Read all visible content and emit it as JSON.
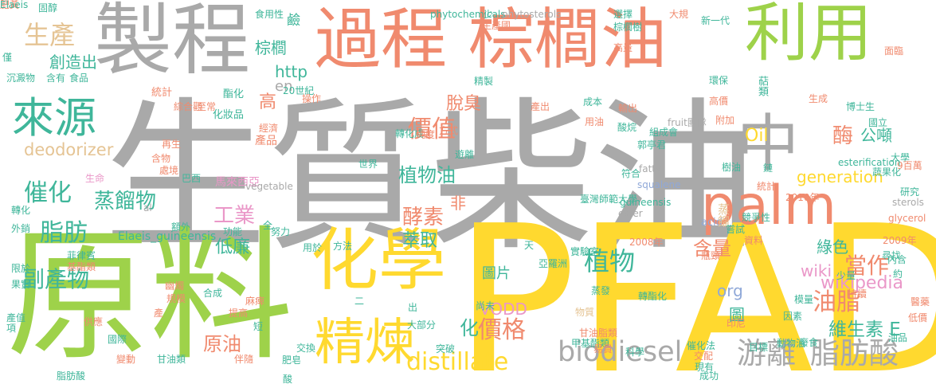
{
  "colors": {
    "gray": "#a9a9a9",
    "orange": "#f4a460",
    "salmon": "#f08a6e",
    "green": "#9ed24a",
    "teal": "#3fb69a",
    "yellow": "#ffd92f",
    "pink": "#ea97c8",
    "blue": "#8fa8d8",
    "tan": "#e5c494"
  },
  "words": [
    {
      "text": "生質柴油",
      "color": "gray"
    },
    {
      "text": "PFAD",
      "color": "yellow"
    },
    {
      "text": "原料",
      "color": "green"
    },
    {
      "text": "製程",
      "color": "gray"
    },
    {
      "text": "過程",
      "color": "salmon"
    },
    {
      "text": "棕櫚油",
      "color": "salmon"
    },
    {
      "text": "利用",
      "color": "green"
    },
    {
      "text": "palm",
      "color": "salmon"
    },
    {
      "text": "化學",
      "color": "yellow"
    },
    {
      "text": "精煉",
      "color": "yellow"
    },
    {
      "text": "中",
      "color": "gray"
    },
    {
      "text": "來源",
      "color": "teal"
    },
    {
      "text": "生產",
      "color": "tan"
    },
    {
      "text": "biodiesel",
      "color": "gray"
    },
    {
      "text": "游離",
      "color": "gray"
    },
    {
      "text": "脂肪酸",
      "color": "gray"
    },
    {
      "text": "distillate",
      "color": "yellow"
    },
    {
      "text": "價值",
      "color": "salmon"
    },
    {
      "text": "價格",
      "color": "salmon"
    },
    {
      "text": "催化",
      "color": "teal"
    },
    {
      "text": "脂肪",
      "color": "teal"
    },
    {
      "text": "副產物",
      "color": "teal"
    },
    {
      "text": "蒸餾物",
      "color": "teal"
    },
    {
      "text": "工業",
      "color": "pink"
    },
    {
      "text": "酵素",
      "color": "salmon"
    },
    {
      "text": "植物油",
      "color": "teal"
    },
    {
      "text": "植物",
      "color": "teal"
    },
    {
      "text": "當作",
      "color": "salmon"
    },
    {
      "text": "油脂",
      "color": "salmon"
    },
    {
      "text": "維生素 E",
      "color": "teal"
    },
    {
      "text": "wikipedia",
      "color": "pink"
    },
    {
      "text": "wiki",
      "color": "pink"
    },
    {
      "text": "含量",
      "color": "salmon"
    },
    {
      "text": "generation",
      "color": "yellow"
    },
    {
      "text": "Oil",
      "color": "yellow"
    },
    {
      "text": "公噸",
      "color": "teal"
    },
    {
      "text": "酶",
      "color": "salmon"
    },
    {
      "text": "脫臭",
      "color": "salmon"
    },
    {
      "text": "deodorizer",
      "color": "tan"
    },
    {
      "text": "創造出",
      "color": "teal"
    },
    {
      "text": "高",
      "color": "salmon"
    },
    {
      "text": "http",
      "color": "teal"
    },
    {
      "text": "en",
      "color": "gray"
    },
    {
      "text": "棕櫚",
      "color": "teal"
    },
    {
      "text": "萃取",
      "color": "teal"
    },
    {
      "text": "低廉",
      "color": "teal"
    },
    {
      "text": "綠色",
      "color": "teal"
    },
    {
      "text": "非",
      "color": "salmon"
    },
    {
      "text": "圖片",
      "color": "teal"
    },
    {
      "text": "圖",
      "color": "teal"
    },
    {
      "text": "org",
      "color": "blue"
    },
    {
      "text": "VODD",
      "color": "pink"
    },
    {
      "text": "原油",
      "color": "salmon"
    },
    {
      "text": "化",
      "color": "teal"
    },
    {
      "text": "Elaeis_guineensis",
      "color": "teal"
    },
    {
      "text": "產品",
      "color": "salmon"
    },
    {
      "text": "馬來西亞",
      "color": "pink"
    },
    {
      "text": "fatty",
      "color": "gray"
    },
    {
      "text": "acid",
      "color": "blue"
    },
    {
      "text": "蒸餾",
      "color": "tan"
    },
    {
      "text": "化妝品",
      "color": "teal"
    },
    {
      "text": "酯化",
      "color": "teal"
    },
    {
      "text": "統計",
      "color": "salmon"
    },
    {
      "text": "鹼",
      "color": "teal"
    },
    {
      "text": "食用性",
      "color": "teal"
    },
    {
      "text": "固醇",
      "color": "teal"
    },
    {
      "text": "phytochemicals",
      "color": "teal"
    },
    {
      "text": "phytosterols",
      "color": "gray"
    },
    {
      "text": "少",
      "color": "teal"
    },
    {
      "text": "選擇",
      "color": "teal"
    },
    {
      "text": "大規",
      "color": "salmon"
    },
    {
      "text": "新一代",
      "color": "teal"
    },
    {
      "text": "棕櫚樹",
      "color": "teal"
    },
    {
      "text": "面臨",
      "color": "salmon"
    },
    {
      "text": "僅",
      "color": "teal"
    },
    {
      "text": "沉澱物",
      "color": "teal"
    },
    {
      "text": "含有",
      "color": "teal"
    },
    {
      "text": "食品",
      "color": "teal"
    },
    {
      "text": "生產國",
      "color": "salmon"
    },
    {
      "text": "高量",
      "color": "salmon"
    },
    {
      "text": "精製",
      "color": "teal"
    },
    {
      "text": "環保",
      "color": "teal"
    },
    {
      "text": "萜類",
      "color": "teal"
    },
    {
      "text": "生成",
      "color": "salmon"
    },
    {
      "text": "博士生",
      "color": "teal"
    },
    {
      "text": "國立",
      "color": "teal"
    },
    {
      "text": "大學",
      "color": "teal"
    },
    {
      "text": "9百萬",
      "color": "salmon"
    },
    {
      "text": "蔬果化",
      "color": "teal"
    },
    {
      "text": "研究",
      "color": "teal"
    },
    {
      "text": "sterols",
      "color": "gray"
    },
    {
      "text": "glycerol",
      "color": "salmon"
    },
    {
      "text": "2009年",
      "color": "salmon"
    },
    {
      "text": "2010年",
      "color": "salmon"
    },
    {
      "text": "2008年",
      "color": "salmon"
    },
    {
      "text": "20世紀",
      "color": "teal"
    },
    {
      "text": "方式",
      "color": "salmon"
    },
    {
      "text": "產出",
      "color": "salmon"
    },
    {
      "text": "成本",
      "color": "teal"
    },
    {
      "text": "輸出",
      "color": "salmon"
    },
    {
      "text": "用油",
      "color": "salmon"
    },
    {
      "text": "酸烷",
      "color": "teal"
    },
    {
      "text": "組成會",
      "color": "teal"
    },
    {
      "text": "fruit團隊",
      "color": "gray"
    },
    {
      "text": "高價",
      "color": "salmon"
    },
    {
      "text": "附加",
      "color": "salmon"
    },
    {
      "text": "樹油",
      "color": "teal"
    },
    {
      "text": "鏈",
      "color": "teal"
    },
    {
      "text": "統計",
      "color": "salmon"
    },
    {
      "text": "esterification",
      "color": "teal"
    },
    {
      "text": "vegetable",
      "color": "gray"
    },
    {
      "text": "al",
      "color": "gray"
    },
    {
      "text": "squalene",
      "color": "blue"
    },
    {
      "text": "guineensis",
      "color": "teal"
    },
    {
      "text": "ester",
      "color": "gray"
    },
    {
      "text": "郭亭君",
      "color": "teal"
    },
    {
      "text": "符合",
      "color": "teal"
    },
    {
      "text": "臺灣師範大學",
      "color": "teal"
    },
    {
      "text": "轉化成",
      "color": "teal"
    },
    {
      "text": "純度",
      "color": "salmon"
    },
    {
      "text": "遊離",
      "color": "teal"
    },
    {
      "text": "綜合觀",
      "color": "salmon"
    },
    {
      "text": "經濟",
      "color": "salmon"
    },
    {
      "text": "世界",
      "color": "teal"
    },
    {
      "text": "巴西",
      "color": "teal"
    },
    {
      "text": "再生",
      "color": "salmon"
    },
    {
      "text": "含物",
      "color": "salmon"
    },
    {
      "text": "處境",
      "color": "salmon"
    },
    {
      "text": "生命",
      "color": "pink"
    },
    {
      "text": "轉化",
      "color": "teal"
    },
    {
      "text": "外銷",
      "color": "teal"
    },
    {
      "text": "額外",
      "color": "teal"
    },
    {
      "text": "功能",
      "color": "teal"
    },
    {
      "text": "努力",
      "color": "teal"
    },
    {
      "text": "全",
      "color": "teal"
    },
    {
      "text": "方法",
      "color": "teal"
    },
    {
      "text": "用於",
      "color": "teal"
    },
    {
      "text": "天",
      "color": "teal"
    },
    {
      "text": "亞羅洲",
      "color": "teal"
    },
    {
      "text": "實驗室",
      "color": "teal"
    },
    {
      "text": "瓶頸",
      "color": "salmon"
    },
    {
      "text": "限於",
      "color": "teal"
    },
    {
      "text": "果實",
      "color": "teal"
    },
    {
      "text": "菲律賓",
      "color": "teal"
    },
    {
      "text": "基酯類",
      "color": "salmon"
    },
    {
      "text": "幽燭",
      "color": "salmon"
    },
    {
      "text": "規模",
      "color": "salmon"
    },
    {
      "text": "產值",
      "color": "teal"
    },
    {
      "text": "項",
      "color": "teal"
    },
    {
      "text": "供應",
      "color": "salmon"
    },
    {
      "text": "國際",
      "color": "teal"
    },
    {
      "text": "變動",
      "color": "salmon"
    },
    {
      "text": "甘油類",
      "color": "teal"
    },
    {
      "text": "脂肪酸",
      "color": "teal"
    },
    {
      "text": "產",
      "color": "salmon"
    },
    {
      "text": "合成",
      "color": "teal"
    },
    {
      "text": "提高",
      "color": "salmon"
    },
    {
      "text": "伴隨",
      "color": "salmon"
    },
    {
      "text": "麻痺",
      "color": "salmon"
    },
    {
      "text": "短",
      "color": "teal"
    },
    {
      "text": "肥皂",
      "color": "teal"
    },
    {
      "text": "酸",
      "color": "teal"
    },
    {
      "text": "交換",
      "color": "teal"
    },
    {
      "text": "二",
      "color": "teal"
    },
    {
      "text": "大部分",
      "color": "teal"
    },
    {
      "text": "出",
      "color": "teal"
    },
    {
      "text": "突破",
      "color": "teal"
    },
    {
      "text": "尚未",
      "color": "teal"
    },
    {
      "text": "物質",
      "color": "tan"
    },
    {
      "text": "甘油脂類",
      "color": "salmon"
    },
    {
      "text": "甲基酯類",
      "color": "teal"
    },
    {
      "text": "易貴",
      "color": "salmon"
    },
    {
      "text": "科學",
      "color": "teal"
    },
    {
      "text": "蒸發",
      "color": "teal"
    },
    {
      "text": "交配",
      "color": "salmon"
    },
    {
      "text": "現有",
      "color": "teal"
    },
    {
      "text": "成功",
      "color": "teal"
    },
    {
      "text": "轉酯化",
      "color": "teal"
    },
    {
      "text": "催化法",
      "color": "teal"
    },
    {
      "text": "印尼",
      "color": "salmon"
    },
    {
      "text": "目標",
      "color": "teal"
    },
    {
      "text": "少量",
      "color": "teal"
    },
    {
      "text": "持續",
      "color": "salmon"
    },
    {
      "text": "油品",
      "color": "teal"
    },
    {
      "text": "醫藥",
      "color": "salmon"
    },
    {
      "text": "低價",
      "color": "salmon"
    },
    {
      "text": "因素",
      "color": "teal"
    },
    {
      "text": "模量",
      "color": "teal"
    },
    {
      "text": "廢食",
      "color": "teal"
    },
    {
      "text": "動物油",
      "color": "teal"
    },
    {
      "text": "競爭性",
      "color": "teal"
    },
    {
      "text": "資料",
      "color": "salmon"
    },
    {
      "text": "嘗試",
      "color": "teal"
    },
    {
      "text": "內含",
      "color": "teal"
    },
    {
      "text": "操作",
      "color": "salmon"
    },
    {
      "text": "尋找",
      "color": "teal"
    },
    {
      "text": "約",
      "color": "teal"
    },
    {
      "text": "至常",
      "color": "salmon"
    },
    {
      "text": "肥黃",
      "color": "salmon"
    },
    {
      "text": "Elaeis",
      "color": "teal"
    }
  ]
}
